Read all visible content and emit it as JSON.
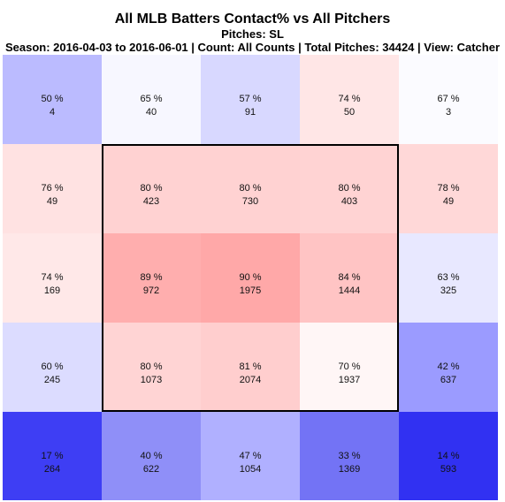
{
  "chart_data": {
    "type": "heatmap",
    "title": "All MLB Batters Contact% vs All Pitchers",
    "subtitle": "Pitches: SL",
    "info": "Season: 2016-04-03 to 2016-06-01 | Count: All Counts | Total Pitches: 34424 | View: Catcher",
    "rows": 5,
    "cols": 5,
    "strike_zone": {
      "rows": [
        1,
        3
      ],
      "cols": [
        1,
        3
      ]
    },
    "cells": [
      [
        {
          "pct": "50 %",
          "count": "4",
          "color": "#bbbbff"
        },
        {
          "pct": "65 %",
          "count": "40",
          "color": "#f7f7ff"
        },
        {
          "pct": "57 %",
          "count": "91",
          "color": "#d8d8ff"
        },
        {
          "pct": "74 %",
          "count": "50",
          "color": "#ffe6e6"
        },
        {
          "pct": "67 %",
          "count": "3",
          "color": "#fbfbff"
        }
      ],
      [
        {
          "pct": "76 %",
          "count": "49",
          "color": "#ffe2e2"
        },
        {
          "pct": "80 %",
          "count": "423",
          "color": "#ffd2d2"
        },
        {
          "pct": "80 %",
          "count": "730",
          "color": "#ffd2d2"
        },
        {
          "pct": "80 %",
          "count": "403",
          "color": "#ffd3d3"
        },
        {
          "pct": "78 %",
          "count": "49",
          "color": "#ffd8d8"
        }
      ],
      [
        {
          "pct": "74 %",
          "count": "169",
          "color": "#ffe8e8"
        },
        {
          "pct": "89 %",
          "count": "972",
          "color": "#ffaeae"
        },
        {
          "pct": "90 %",
          "count": "1975",
          "color": "#ffa8a8"
        },
        {
          "pct": "84 %",
          "count": "1444",
          "color": "#ffc4c4"
        },
        {
          "pct": "63 %",
          "count": "325",
          "color": "#e8e8ff"
        }
      ],
      [
        {
          "pct": "60 %",
          "count": "245",
          "color": "#dcdcff"
        },
        {
          "pct": "80 %",
          "count": "1073",
          "color": "#ffd4d4"
        },
        {
          "pct": "81 %",
          "count": "2074",
          "color": "#ffcece"
        },
        {
          "pct": "70 %",
          "count": "1937",
          "color": "#fff6f6"
        },
        {
          "pct": "42 %",
          "count": "637",
          "color": "#9b9bff"
        }
      ],
      [
        {
          "pct": "17 %",
          "count": "264",
          "color": "#3e3ef4"
        },
        {
          "pct": "40 %",
          "count": "622",
          "color": "#8f8ff8"
        },
        {
          "pct": "47 %",
          "count": "1054",
          "color": "#b0b0ff"
        },
        {
          "pct": "33 %",
          "count": "1369",
          "color": "#7373f5"
        },
        {
          "pct": "14 %",
          "count": "593",
          "color": "#3131f2"
        }
      ]
    ]
  }
}
